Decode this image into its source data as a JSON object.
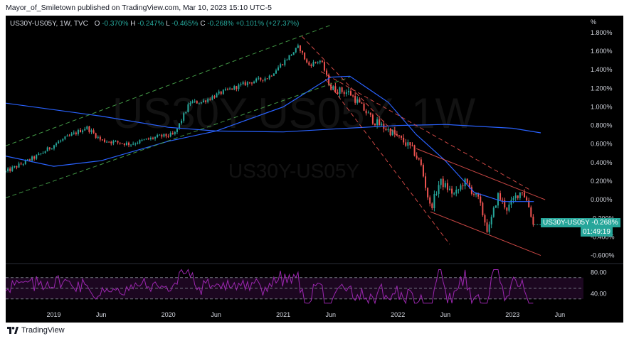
{
  "header": {
    "publisher_line": "Mayor_of_Smiletown published on TradingView.com, Mar 10, 2023 15:10 UTC-5"
  },
  "legend": {
    "symbol": "US30Y-US05Y, 1W, TVC",
    "open_label": "O",
    "open": "-0.370%",
    "high_label": "H",
    "high": "-0.247%",
    "low_label": "L",
    "low": "-0.465%",
    "close_label": "C",
    "close": "-0.268%",
    "change": "+0.101% (+27.37%)"
  },
  "watermark": {
    "big": "US30Y-US05Y, 1W",
    "small": "US30Y-US05Y"
  },
  "price_tag": {
    "symbol": "US30Y-US05Y",
    "value": "-0.268%",
    "countdown": "01:49:19"
  },
  "footer": {
    "brand": "TradingView"
  },
  "colors": {
    "up": "#26a69a",
    "down": "#ef5350",
    "ma_fast": "#2962ff",
    "ma_slow": "#2962ff",
    "channel": "#4caf50",
    "downtrend": "#ef5350",
    "rsi": "#9c27b0",
    "background": "#000000"
  },
  "chart_data": [
    {
      "type": "candlestick",
      "title": "US30Y-US05Y, 1W, TVC",
      "y_unit_label": "%",
      "y_ticks": [
        "1.800%",
        "1.600%",
        "1.400%",
        "1.200%",
        "1.000%",
        "0.800%",
        "0.600%",
        "0.400%",
        "0.200%",
        "0.000%",
        "-0.200%",
        "-0.400%",
        "-0.600%"
      ],
      "ylim": [
        -0.68,
        1.86
      ],
      "x_tick_labels": [
        "2019",
        "Jun",
        "2020",
        "Jun",
        "2021",
        "Jun",
        "2022",
        "Jun",
        "2023",
        "Jun"
      ],
      "x_tick_dates": [
        "2019-01-01",
        "2019-06-01",
        "2020-01-01",
        "2020-06-01",
        "2021-01-01",
        "2021-06-01",
        "2022-01-01",
        "2022-06-01",
        "2023-01-01",
        "2023-06-01"
      ],
      "xlim": [
        "2018-08-01",
        "2023-08-15"
      ],
      "price_anchors": [
        [
          "2018-08-01",
          0.3
        ],
        [
          "2018-11-15",
          0.48
        ],
        [
          "2019-01-15",
          0.62
        ],
        [
          "2019-04-15",
          0.78
        ],
        [
          "2019-06-01",
          0.64
        ],
        [
          "2019-09-01",
          0.6
        ],
        [
          "2019-12-01",
          0.68
        ],
        [
          "2020-01-20",
          0.7
        ],
        [
          "2020-03-10",
          1.05
        ],
        [
          "2020-04-15",
          1.05
        ],
        [
          "2020-06-15",
          1.15
        ],
        [
          "2020-09-01",
          1.25
        ],
        [
          "2020-11-15",
          1.32
        ],
        [
          "2021-02-20",
          1.65
        ],
        [
          "2021-03-20",
          1.45
        ],
        [
          "2021-05-01",
          1.5
        ],
        [
          "2021-06-01",
          1.2
        ],
        [
          "2021-08-01",
          1.15
        ],
        [
          "2021-10-15",
          0.85
        ],
        [
          "2021-12-15",
          0.72
        ],
        [
          "2022-02-15",
          0.55
        ],
        [
          "2022-03-15",
          0.38
        ],
        [
          "2022-04-15",
          -0.1
        ],
        [
          "2022-05-15",
          0.2
        ],
        [
          "2022-07-01",
          0.05
        ],
        [
          "2022-08-01",
          0.2
        ],
        [
          "2022-09-15",
          0.0
        ],
        [
          "2022-10-15",
          -0.35
        ],
        [
          "2022-11-15",
          0.05
        ],
        [
          "2022-12-15",
          -0.1
        ],
        [
          "2023-01-15",
          0.05
        ],
        [
          "2023-02-01",
          0.1
        ],
        [
          "2023-02-20",
          -0.05
        ],
        [
          "2023-03-10",
          -0.27
        ]
      ],
      "moving_average_fast_name": "",
      "ma_fast": [
        [
          "2018-08-01",
          0.47
        ],
        [
          "2019-01-01",
          0.36
        ],
        [
          "2019-06-01",
          0.42
        ],
        [
          "2020-01-01",
          0.63
        ],
        [
          "2020-06-01",
          0.74
        ],
        [
          "2021-01-01",
          1.0
        ],
        [
          "2021-06-01",
          1.32
        ],
        [
          "2021-08-01",
          1.33
        ],
        [
          "2021-12-01",
          1.05
        ],
        [
          "2022-03-01",
          0.7
        ],
        [
          "2022-06-01",
          0.42
        ],
        [
          "2022-09-01",
          0.08
        ],
        [
          "2022-12-01",
          -0.02
        ],
        [
          "2023-03-10",
          -0.02
        ]
      ],
      "ma_slow": [
        [
          "2018-08-01",
          1.04
        ],
        [
          "2019-06-01",
          0.9
        ],
        [
          "2020-01-01",
          0.78
        ],
        [
          "2020-06-01",
          0.74
        ],
        [
          "2021-01-01",
          0.73
        ],
        [
          "2021-06-01",
          0.76
        ],
        [
          "2022-01-01",
          0.8
        ],
        [
          "2022-06-01",
          0.81
        ],
        [
          "2023-01-01",
          0.77
        ],
        [
          "2023-04-01",
          0.72
        ]
      ],
      "trendlines": [
        {
          "kind": "channel-upper",
          "from": [
            "2018-08-01",
            0.58
          ],
          "to": [
            "2021-06-01",
            1.88
          ]
        },
        {
          "kind": "channel-lower",
          "from": [
            "2018-08-01",
            0.02
          ],
          "to": [
            "2021-08-01",
            1.32
          ]
        },
        {
          "kind": "downtrend-upper",
          "from": [
            "2021-03-01",
            1.76
          ],
          "to": [
            "2022-01-01",
            0.68
          ]
        },
        {
          "kind": "downtrend-mid",
          "from": [
            "2021-05-01",
            1.38
          ],
          "to": [
            "2023-03-01",
            0.1
          ]
        },
        {
          "kind": "downtrend-lower",
          "from": [
            "2021-05-15",
            1.3
          ],
          "to": [
            "2022-06-15",
            -0.48
          ]
        },
        {
          "kind": "resistance",
          "from": [
            "2022-03-01",
            0.55
          ],
          "to": [
            "2023-04-15",
            0.0
          ]
        },
        {
          "kind": "support",
          "from": [
            "2022-04-15",
            -0.13
          ],
          "to": [
            "2023-04-01",
            -0.6
          ]
        }
      ],
      "last_value": -0.268
    },
    {
      "type": "line",
      "title": "",
      "y_ticks": [
        "80.00",
        "40.00"
      ],
      "ylim": [
        15,
        95
      ],
      "levels": [
        70,
        50,
        30
      ],
      "xlim": [
        "2018-08-01",
        "2023-08-15"
      ]
    }
  ]
}
